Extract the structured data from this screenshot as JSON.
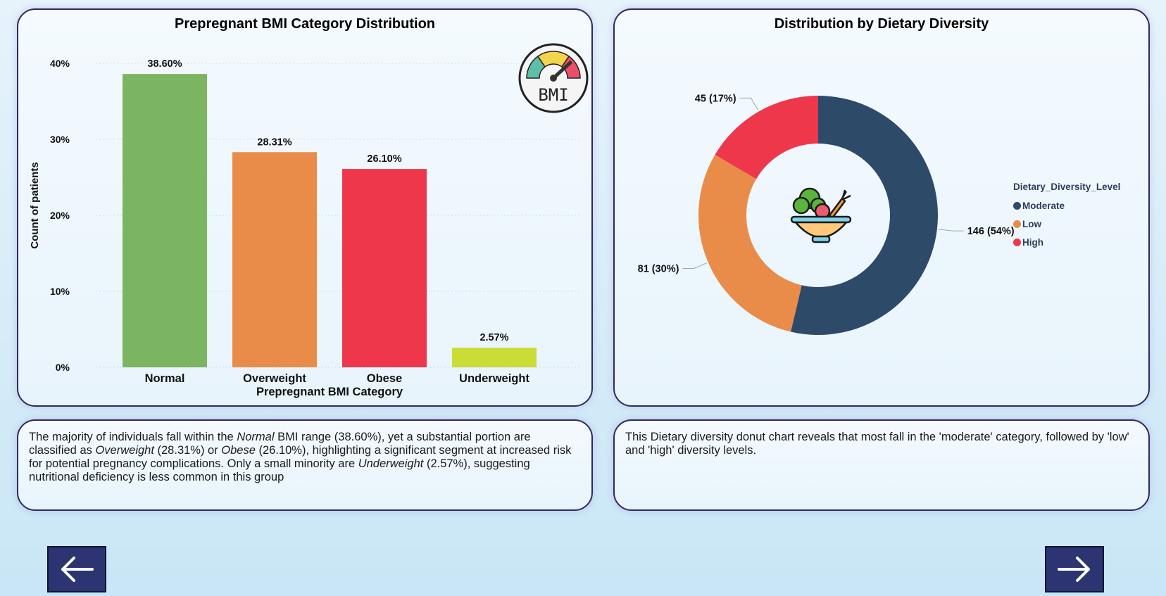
{
  "bmi_chart": {
    "title": "Prepregnant BMI Category Distribution",
    "chart_data": {
      "type": "bar",
      "title": "Prepregnant BMI Category Distribution",
      "categories": [
        "Normal",
        "Overweight",
        "Obese",
        "Underweight"
      ],
      "values": [
        38.6,
        28.31,
        26.1,
        2.57
      ],
      "data_labels": [
        "38.60%",
        "28.31%",
        "26.10%",
        "2.57%"
      ],
      "bar_colors": [
        "#7cb562",
        "#e98c4a",
        "#ef374c",
        "#c9dd36"
      ],
      "xlabel": "Prepregnant BMI Category",
      "ylabel": "Count of patients",
      "yticks": [
        "0%",
        "10%",
        "20%",
        "30%",
        "40%"
      ],
      "ytick_values": [
        0,
        10,
        20,
        30,
        40
      ],
      "ylim": [
        0,
        40
      ],
      "grid": true
    }
  },
  "diet_chart": {
    "title": "Distribution by Dietary Diversity",
    "chart_data": {
      "type": "pie",
      "donut": true,
      "title": "Distribution by Dietary Diversity",
      "categories": [
        "Moderate",
        "Low",
        "High"
      ],
      "values": [
        146,
        81,
        45
      ],
      "data_labels": [
        "146 (54%)",
        "81 (30%)",
        "45 (17%)"
      ],
      "colors": [
        "#2d4a69",
        "#e98c4a",
        "#ef374c"
      ],
      "legend_title": "Dietary_Diversity_Level",
      "legend_position": "right"
    }
  },
  "bmi_insight": {
    "t1": "The majority of individuals fall within the ",
    "e1": "Normal",
    "t2": " BMI range (38.60%), yet a substantial portion are classified as ",
    "e2": "Overweight",
    "t3": " (28.31%) or ",
    "e3": "Obese",
    "t4": " (26.10%), highlighting a significant segment at increased risk for potential pregnancy complications. Only a small minority are ",
    "e4": "Underweight",
    "t5": " (2.57%), suggesting nutritional deficiency is less common in this group"
  },
  "diet_insight": {
    "text": "This Dietary diversity donut chart reveals that most fall in the 'moderate' category, followed by 'low' and 'high' diversity levels."
  },
  "badge": {
    "bmi_text": "BMI"
  },
  "nav": {
    "prev_icon": "arrow-left-icon",
    "next_icon": "arrow-right-icon"
  }
}
